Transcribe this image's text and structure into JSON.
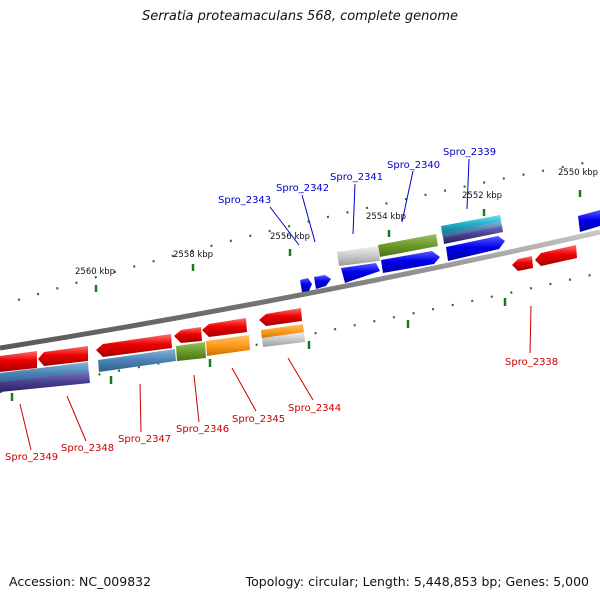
{
  "title": "Serratia proteamaculans 568, complete genome",
  "footer": {
    "accession": "Accession: NC_009832",
    "summary": "Topology: circular; Length: 5,448,853 bp; Genes: 5,000"
  },
  "colors": {
    "forward_label": "#0000cc",
    "reverse_label": "#cc0000",
    "tick": "#1a7a1a",
    "backbone": "#808080"
  },
  "kbp_labels": [
    "2560 kbp",
    "2558 kbp",
    "2556 kbp",
    "2554 kbp",
    "2552 kbp",
    "2550 kbp"
  ],
  "forward_genes": [
    "Spro_2343",
    "Spro_2342",
    "Spro_2341",
    "Spro_2340",
    "Spro_2339"
  ],
  "reverse_genes": [
    "Spro_2349",
    "Spro_2348",
    "Spro_2347",
    "Spro_2346",
    "Spro_2345",
    "Spro_2344",
    "Spro_2338"
  ]
}
